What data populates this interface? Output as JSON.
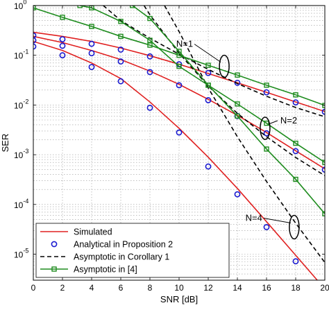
{
  "chart_data": {
    "type": "line",
    "xlabel": "SNR [dB]",
    "ylabel": "SER",
    "xlim": [
      0,
      20
    ],
    "ylim": [
      3e-06,
      1
    ],
    "yscale": "log",
    "grid": true,
    "legend_position": "bottom-left",
    "x_ticks": [
      "0",
      "2",
      "4",
      "6",
      "8",
      "10",
      "12",
      "14",
      "16",
      "18",
      "20"
    ],
    "y_ticks": [
      {
        "base": "10",
        "exp": "0",
        "value": 1
      },
      {
        "base": "10",
        "exp": "-1",
        "value": 0.1
      },
      {
        "base": "10",
        "exp": "-2",
        "value": 0.01
      },
      {
        "base": "10",
        "exp": "-3",
        "value": 0.001
      },
      {
        "base": "10",
        "exp": "-4",
        "value": 0.0001
      },
      {
        "base": "10",
        "exp": "-5",
        "value": 1e-05
      }
    ],
    "series": [
      {
        "name": "Simulated",
        "color": "#e02020",
        "style": "solid",
        "marker": "none",
        "groups": [
          {
            "x": [
              0,
              2,
              4,
              6,
              8,
              10,
              12,
              14,
              16,
              18,
              20
            ],
            "y": [
              0.29,
              0.24,
              0.19,
              0.14,
              0.098,
              0.066,
              0.043,
              0.028,
              0.018,
              0.0115,
              0.0074
            ]
          },
          {
            "x": [
              0,
              2,
              4,
              6,
              8,
              10,
              12,
              14,
              16,
              18,
              20
            ],
            "y": [
              0.24,
              0.18,
              0.125,
              0.082,
              0.048,
              0.026,
              0.013,
              0.0062,
              0.0028,
              0.0012,
              0.00052
            ]
          },
          {
            "x": [
              0,
              2,
              4,
              6,
              8,
              10,
              12,
              14,
              16,
              18,
              20
            ],
            "y": [
              0.19,
              0.125,
              0.07,
              0.034,
              0.0115,
              0.0034,
              0.00089,
              0.00021,
              4.5e-05,
              9.5e-06,
              2e-06
            ]
          }
        ]
      },
      {
        "name": "Analytical in Proposition 2",
        "color": "#1a1ad0",
        "style": "none",
        "marker": "circle",
        "groups": [
          {
            "x": [
              0,
              2,
              4,
              6,
              8,
              10,
              12,
              14,
              16,
              18,
              20
            ],
            "y": [
              0.25,
              0.21,
              0.17,
              0.13,
              0.095,
              0.066,
              0.044,
              0.028,
              0.018,
              0.0113,
              0.0073
            ]
          },
          {
            "x": [
              0,
              2,
              4,
              6,
              8,
              10,
              12,
              14,
              16,
              18,
              20
            ],
            "y": [
              0.2,
              0.155,
              0.11,
              0.075,
              0.046,
              0.025,
              0.0125,
              0.006,
              0.0027,
              0.00118,
              0.0005
            ]
          },
          {
            "x": [
              0,
              2,
              4,
              6,
              8,
              10,
              12,
              14,
              16,
              18,
              20
            ],
            "y": [
              0.15,
              0.1,
              0.058,
              0.03,
              0.0088,
              0.0028,
              0.00058,
              0.00016,
              3.5e-05,
              7.2e-06,
              1.5e-06
            ]
          }
        ]
      },
      {
        "name": "Asymptotic in Corollary 1",
        "color": "#000000",
        "style": "dashed",
        "marker": "none",
        "groups": [
          {
            "x": [
              4.8,
              6,
              8,
              10,
              12,
              14,
              16,
              18,
              20
            ],
            "y": [
              1,
              0.5,
              0.22,
              0.105,
              0.052,
              0.027,
              0.015,
              0.0089,
              0.0058
            ]
          },
          {
            "x": [
              7.6,
              8,
              10,
              12,
              14,
              16,
              18,
              20
            ],
            "y": [
              1,
              0.65,
              0.11,
              0.024,
              0.0068,
              0.0023,
              0.00088,
              0.00038
            ]
          },
          {
            "x": [
              9.0,
              10,
              12,
              14,
              16,
              18,
              20
            ],
            "y": [
              1,
              0.3,
              0.022,
              0.0023,
              0.00029,
              4.2e-05,
              6.8e-06
            ]
          }
        ]
      },
      {
        "name": "Asymptotic in [4]",
        "color": "#1e8c1e",
        "style": "solid",
        "marker": "square",
        "groups": [
          {
            "x": [
              0,
              2,
              4,
              6,
              8,
              10,
              12,
              14,
              16,
              18,
              20
            ],
            "y": [
              0.9,
              0.58,
              0.38,
              0.24,
              0.16,
              0.1,
              0.063,
              0.04,
              0.025,
              0.016,
              0.0098
            ]
          },
          {
            "x": [
              3.2,
              4,
              6,
              8,
              10,
              12,
              14,
              16,
              18,
              20
            ],
            "y": [
              1,
              0.9,
              0.48,
              0.2,
              0.06,
              0.025,
              0.0105,
              0.0043,
              0.0017,
              0.0007
            ]
          },
          {
            "x": [
              6.8,
              8,
              10,
              12,
              14,
              16,
              18,
              20
            ],
            "y": [
              1,
              0.55,
              0.12,
              0.025,
              0.006,
              0.0013,
              0.00032,
              6.5e-05
            ]
          }
        ]
      }
    ],
    "annotations": [
      {
        "text": "N=1",
        "target_x": 13.1,
        "target_y": 0.06
      },
      {
        "text": "N=2",
        "target_x": 15.9,
        "target_y": 0.0034
      },
      {
        "text": "N=4",
        "target_x": 17.9,
        "target_y": 3.5e-05
      }
    ]
  }
}
